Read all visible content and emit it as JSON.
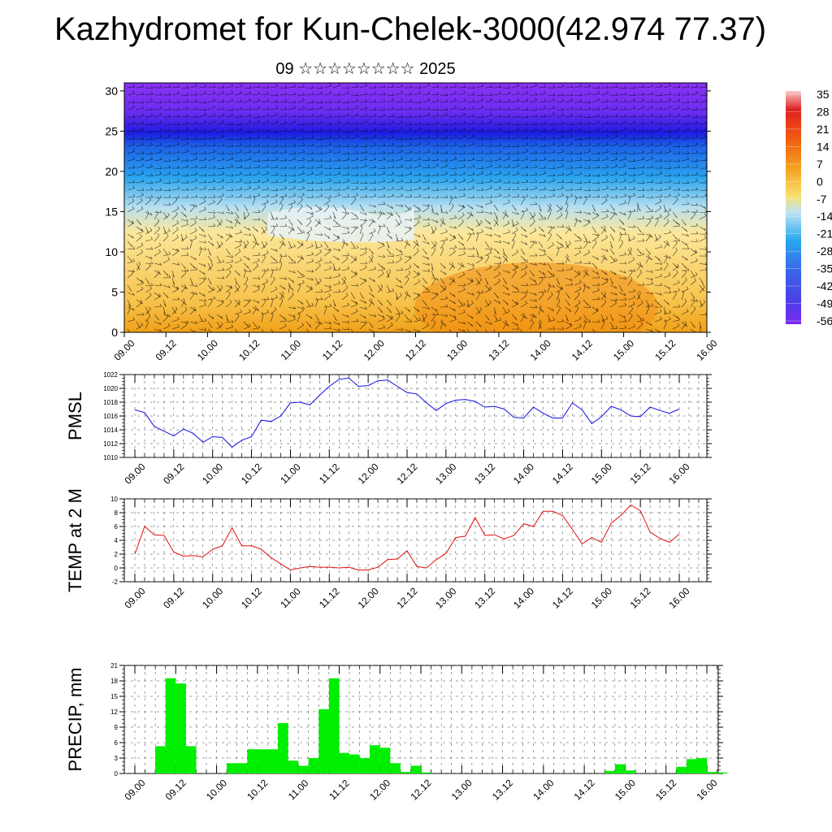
{
  "header": {
    "title": "Kazhydromet for Kun-Chelek-3000(42.974 77.37)",
    "subtitle": "09 ☆☆☆☆☆☆☆☆ 2025"
  },
  "chart_data": [
    {
      "type": "heatmap",
      "title": "",
      "x": [
        "09.00",
        "09.12",
        "10.00",
        "10.12",
        "11.00",
        "11.12",
        "12.00",
        "12.12",
        "13.00",
        "13.12",
        "14.00",
        "14.12",
        "15.00",
        "15.12",
        "16.00"
      ],
      "ylim": [
        0,
        31
      ],
      "yticks": [
        0,
        5,
        10,
        15,
        20,
        25,
        30
      ],
      "colorbar": {
        "labels": [
          "35",
          "28",
          "21",
          "14",
          "7",
          "0",
          "-7",
          "-14",
          "-21",
          "-28",
          "-35",
          "-42",
          "-49",
          "-56"
        ],
        "range": [
          -60,
          38
        ]
      },
      "overlay": "wind barbs",
      "colors": {
        "cold": "#8a2be2",
        "cool": "#1e90ff",
        "neutral": "#fff0a0",
        "warm": "#f4a020",
        "hot": "#e03010"
      }
    },
    {
      "type": "line",
      "ylabel": "PMSL",
      "ylim": [
        1010,
        1022
      ],
      "yticks": [
        1010,
        1012,
        1014,
        1016,
        1018,
        1020,
        1022
      ],
      "xticks": [
        "09.00",
        "09.12",
        "10.00",
        "10.12",
        "11.00",
        "11.12",
        "12.00",
        "12.12",
        "13.00",
        "13.12",
        "14.00",
        "14.12",
        "15.00",
        "15.12",
        "16.00"
      ],
      "color": "#1010e0",
      "values": [
        1016.9,
        1016.5,
        1014.5,
        1013.8,
        1013.1,
        1014.1,
        1013.5,
        1012.2,
        1013.0,
        1012.9,
        1011.5,
        1012.5,
        1013.0,
        1015.4,
        1015.2,
        1016.0,
        1017.9,
        1018.0,
        1017.6,
        1019.0,
        1020.3,
        1021.3,
        1021.5,
        1020.3,
        1020.4,
        1021.1,
        1021.2,
        1020.3,
        1019.4,
        1019.2,
        1017.9,
        1016.8,
        1017.8,
        1018.3,
        1018.4,
        1018.1,
        1017.3,
        1017.4,
        1017.0,
        1015.8,
        1015.7,
        1017.3,
        1016.4,
        1015.7,
        1015.7,
        1017.9,
        1016.9,
        1014.9,
        1015.9,
        1017.4,
        1016.9,
        1016.0,
        1015.9,
        1017.3,
        1016.8,
        1016.4,
        1017.0
      ]
    },
    {
      "type": "line",
      "ylabel": "TEMP at 2 M",
      "ylim": [
        -2,
        10
      ],
      "yticks": [
        -2,
        0,
        2,
        4,
        6,
        8,
        10
      ],
      "xticks": [
        "09.00",
        "09.12",
        "10.00",
        "10.12",
        "11.00",
        "11.12",
        "12.00",
        "12.12",
        "13.00",
        "13.12",
        "14.00",
        "14.12",
        "15.00",
        "15.12",
        "16.00"
      ],
      "color": "#e01010",
      "values": [
        2.0,
        6.0,
        4.8,
        4.7,
        2.3,
        1.7,
        1.8,
        1.6,
        2.7,
        3.2,
        5.8,
        3.2,
        3.2,
        2.7,
        1.5,
        0.6,
        -0.3,
        0.0,
        0.2,
        0.1,
        0.1,
        0.0,
        0.1,
        -0.3,
        -0.3,
        0.1,
        1.2,
        1.3,
        2.5,
        0.2,
        0.0,
        1.2,
        2.1,
        4.4,
        4.6,
        7.3,
        4.7,
        4.8,
        4.2,
        4.7,
        6.4,
        6.0,
        8.2,
        8.2,
        7.6,
        5.6,
        3.5,
        4.4,
        3.7,
        6.5,
        7.6,
        9.1,
        8.3,
        5.2,
        4.3,
        3.7,
        4.9
      ]
    },
    {
      "type": "bar",
      "ylabel": "PRECIP, mm",
      "ylim": [
        0,
        21
      ],
      "yticks": [
        0,
        3,
        6,
        9,
        12,
        15,
        18,
        21
      ],
      "xticks": [
        "09.00",
        "09.12",
        "10.00",
        "10.12",
        "11.00",
        "11.12",
        "12.00",
        "12.12",
        "13.00",
        "13.12",
        "14.00",
        "14.12",
        "15.00",
        "15.12",
        "16.00"
      ],
      "color": "#00ee00",
      "values": [
        0,
        0,
        5.3,
        18.5,
        17.5,
        5.3,
        0,
        0,
        0,
        2.0,
        2.0,
        4.7,
        4.7,
        4.7,
        9.8,
        2.5,
        1.5,
        3.0,
        12.5,
        18.5,
        4.0,
        3.7,
        3.0,
        5.5,
        5.0,
        2.0,
        0.3,
        1.5,
        0.2,
        0,
        0,
        0,
        0,
        0,
        0,
        0,
        0,
        0,
        0,
        0,
        0,
        0,
        0,
        0,
        0,
        0,
        0.5,
        1.8,
        0.6,
        0,
        0,
        0,
        0,
        1.3,
        2.8,
        3.0,
        0.3,
        0.2,
        0
      ]
    }
  ]
}
